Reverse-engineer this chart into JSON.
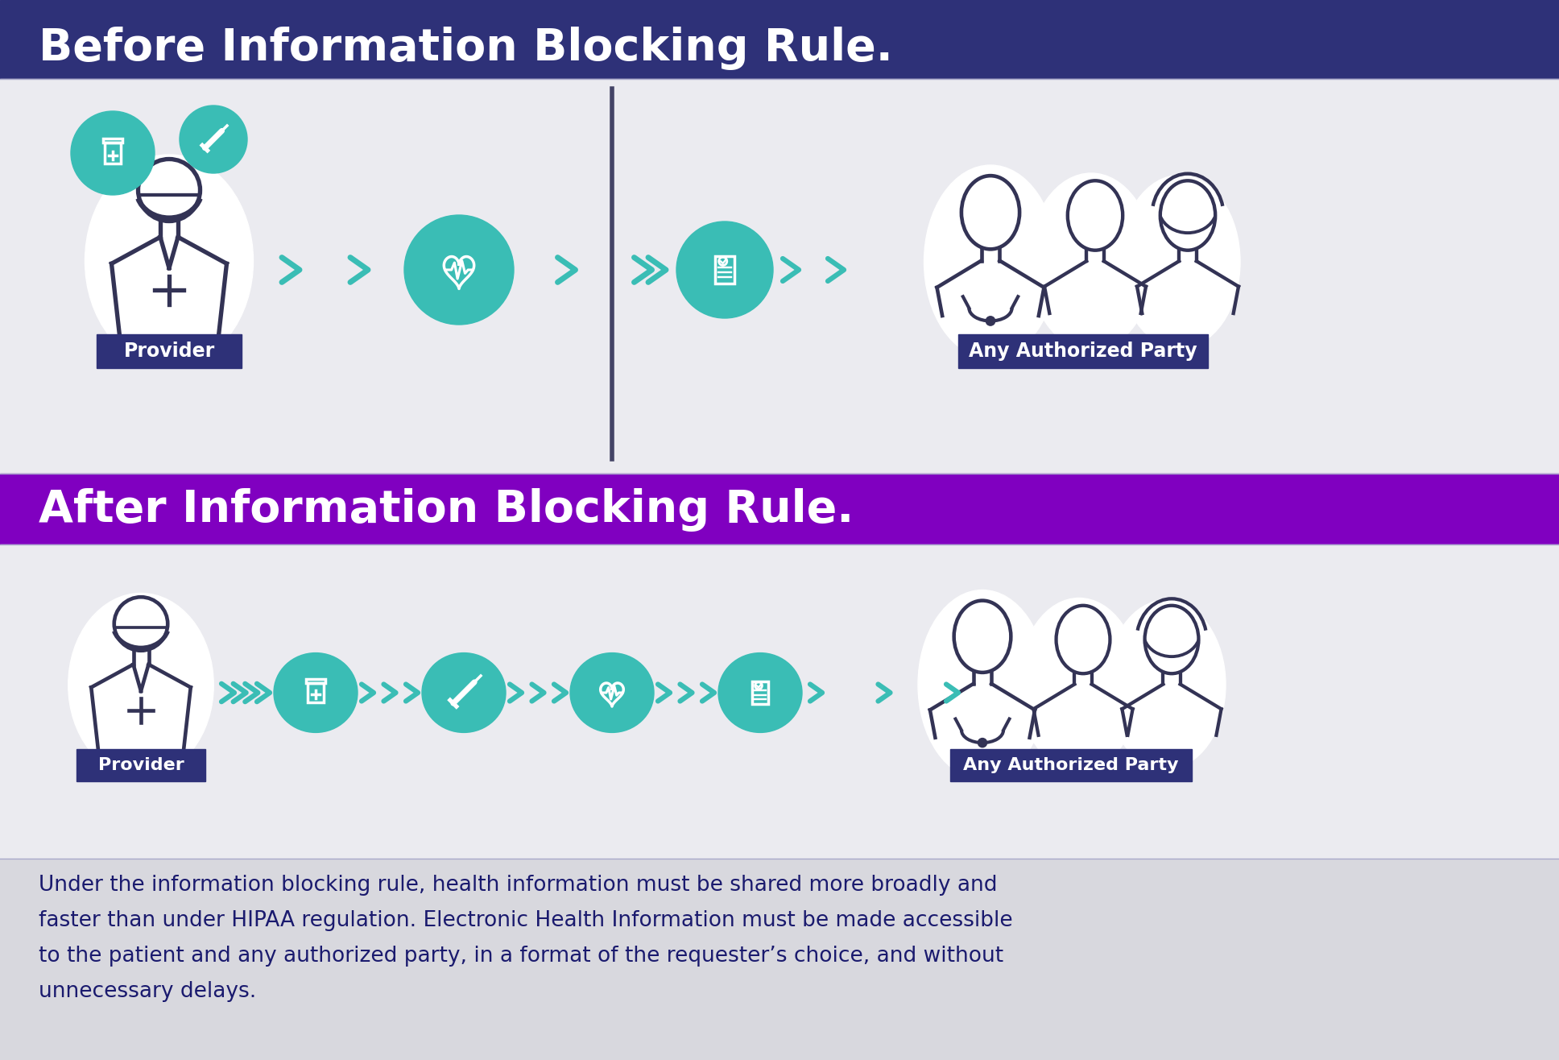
{
  "before_title": "Before Information Blocking Rule.",
  "after_title": "After Information Blocking Rule.",
  "footer_text": "Under the information blocking rule, health information must be shared more broadly and\nfaster than under HIPAA regulation. Electronic Health Information must be made accessible\nto the patient and any authorized party, in a format of the requester’s choice, and without\nunnecessary delays.",
  "before_header_bg": "#2e3178",
  "after_header_bg": "#8000c0",
  "section_bg": "#ebebf0",
  "footer_bg": "#d8d8de",
  "title_color": "#ffffff",
  "footer_text_color": "#1a1a6e",
  "teal_color": "#3abdb5",
  "dark_color": "#333355",
  "label_bg": "#2e3178",
  "label_text": "#ffffff",
  "provider_label": "Provider",
  "authorized_label": "Any Authorized Party",
  "fig_width": 19.36,
  "fig_height": 13.16
}
